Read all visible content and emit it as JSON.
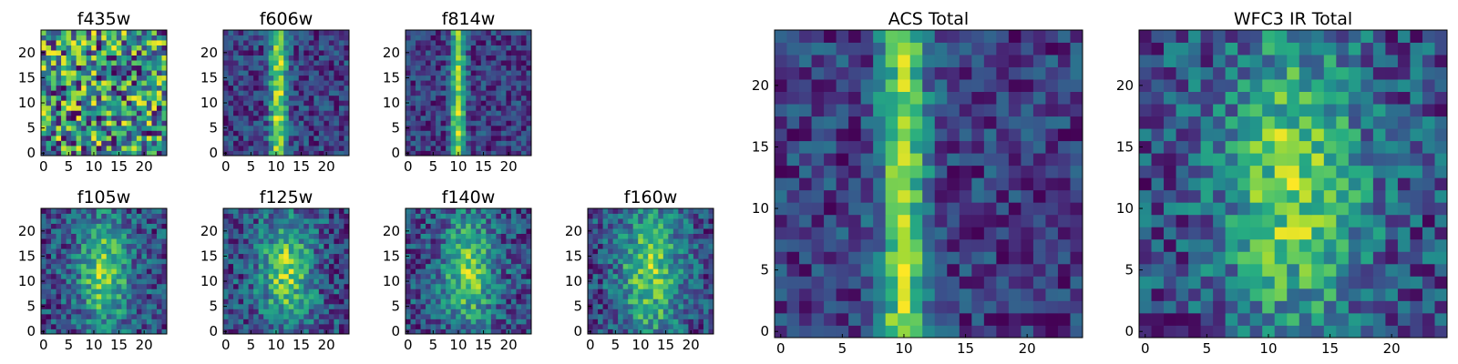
{
  "chart_data": [
    {
      "type": "heatmap",
      "title": "f435w",
      "xlim": [
        0,
        24
      ],
      "ylim": [
        0,
        24
      ],
      "xticks": [
        0,
        5,
        10,
        15,
        20
      ],
      "yticks": [
        0,
        5,
        10,
        15,
        20
      ],
      "colormap": "viridis",
      "pattern": "noise",
      "seed": 11
    },
    {
      "type": "heatmap",
      "title": "f606w",
      "xlim": [
        0,
        24
      ],
      "ylim": [
        0,
        24
      ],
      "xticks": [
        0,
        5,
        10,
        15,
        20
      ],
      "yticks": [
        0,
        5,
        10,
        15,
        20
      ],
      "colormap": "viridis",
      "pattern": "vertical-band",
      "band_center": 10.5,
      "band_width": 1.2,
      "seed": 23
    },
    {
      "type": "heatmap",
      "title": "f814w",
      "xlim": [
        0,
        24
      ],
      "ylim": [
        0,
        24
      ],
      "xticks": [
        0,
        5,
        10,
        15,
        20
      ],
      "yticks": [
        0,
        5,
        10,
        15,
        20
      ],
      "colormap": "viridis",
      "pattern": "vertical-band",
      "band_center": 10,
      "band_width": 1.0,
      "seed": 37
    },
    {
      "type": "heatmap",
      "title": "f105w",
      "xlim": [
        0,
        24
      ],
      "ylim": [
        0,
        24
      ],
      "xticks": [
        0,
        5,
        10,
        15,
        20
      ],
      "yticks": [
        0,
        5,
        10,
        15,
        20
      ],
      "colormap": "viridis",
      "pattern": "blob",
      "band_center": 12,
      "band_width": 3.5,
      "seed": 41
    },
    {
      "type": "heatmap",
      "title": "f125w",
      "xlim": [
        0,
        24
      ],
      "ylim": [
        0,
        24
      ],
      "xticks": [
        0,
        5,
        10,
        15,
        20
      ],
      "yticks": [
        0,
        5,
        10,
        15,
        20
      ],
      "colormap": "viridis",
      "pattern": "blob",
      "band_center": 12,
      "band_width": 3.5,
      "seed": 53
    },
    {
      "type": "heatmap",
      "title": "f140w",
      "xlim": [
        0,
        24
      ],
      "ylim": [
        0,
        24
      ],
      "xticks": [
        0,
        5,
        10,
        15,
        20
      ],
      "yticks": [
        0,
        5,
        10,
        15,
        20
      ],
      "colormap": "viridis",
      "pattern": "blob",
      "band_center": 12,
      "band_width": 3.5,
      "seed": 67
    },
    {
      "type": "heatmap",
      "title": "f160w",
      "xlim": [
        0,
        24
      ],
      "ylim": [
        0,
        24
      ],
      "xticks": [
        0,
        5,
        10,
        15,
        20
      ],
      "yticks": [
        0,
        5,
        10,
        15,
        20
      ],
      "colormap": "viridis",
      "pattern": "blob",
      "band_center": 12,
      "band_width": 4.5,
      "seed": 79
    },
    {
      "type": "heatmap",
      "title": "ACS Total",
      "xlim": [
        0,
        24
      ],
      "ylim": [
        0,
        24
      ],
      "xticks": [
        0,
        5,
        10,
        15,
        20
      ],
      "yticks": [
        0,
        5,
        10,
        15,
        20
      ],
      "colormap": "viridis",
      "pattern": "vertical-band",
      "band_center": 10,
      "band_width": 1.3,
      "seed": 83
    },
    {
      "type": "heatmap",
      "title": "WFC3 IR Total",
      "xlim": [
        0,
        24
      ],
      "ylim": [
        0,
        24
      ],
      "xticks": [
        0,
        5,
        10,
        15,
        20
      ],
      "yticks": [
        0,
        5,
        10,
        15,
        20
      ],
      "colormap": "viridis",
      "pattern": "blob",
      "band_center": 12,
      "band_width": 4.0,
      "seed": 97
    }
  ]
}
